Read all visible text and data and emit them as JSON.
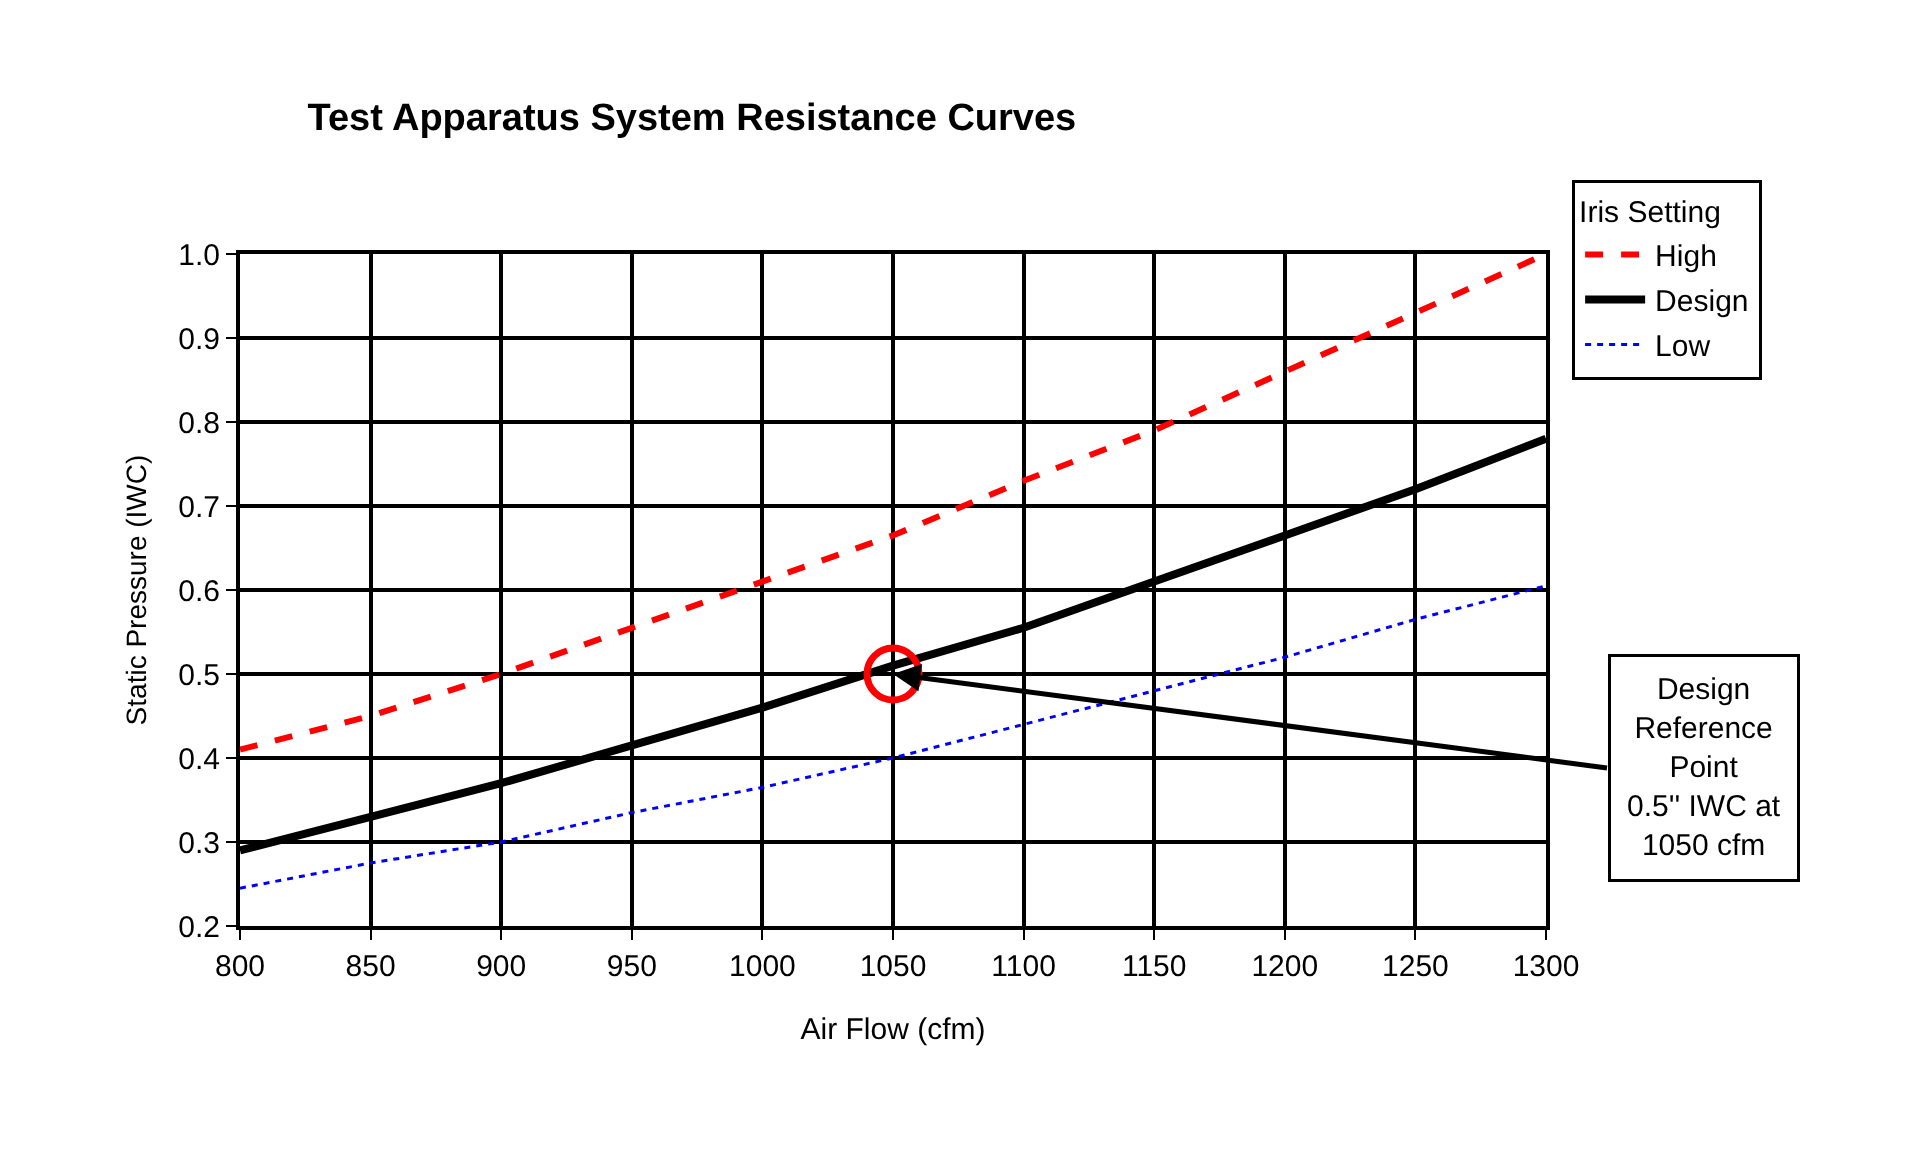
{
  "chart_data": {
    "type": "line",
    "title": "Test Apparatus System Resistance Curves",
    "xlabel": "Air Flow (cfm)",
    "ylabel": "Static Pressure (IWC)",
    "legend_title": "Iris Setting",
    "x": [
      800,
      850,
      900,
      950,
      1000,
      1050,
      1100,
      1150,
      1200,
      1250,
      1300
    ],
    "series": [
      {
        "name": "High",
        "color": "#ff0000",
        "line_style": "dashed",
        "values": [
          0.41,
          0.45,
          0.5,
          0.555,
          0.61,
          0.665,
          0.73,
          0.79,
          0.86,
          0.93,
          1.0
        ]
      },
      {
        "name": "Design",
        "color": "#000000",
        "line_style": "solid",
        "values": [
          0.29,
          0.33,
          0.37,
          0.415,
          0.46,
          0.51,
          0.555,
          0.61,
          0.665,
          0.72,
          0.78
        ]
      },
      {
        "name": "Low",
        "color": "#0000ff",
        "line_style": "dotted",
        "values": [
          0.245,
          0.275,
          0.3,
          0.335,
          0.365,
          0.4,
          0.44,
          0.48,
          0.52,
          0.565,
          0.605
        ]
      }
    ],
    "xlim": [
      800,
      1300
    ],
    "xticks": [
      800,
      850,
      900,
      950,
      1000,
      1050,
      1100,
      1150,
      1200,
      1250,
      1300
    ],
    "ylim": [
      0.2,
      1.0
    ],
    "yticks": [
      {
        "value": 0.2,
        "label": "0.2"
      },
      {
        "value": 0.3,
        "label": "0.3"
      },
      {
        "value": 0.4,
        "label": "0.4"
      },
      {
        "value": 0.5,
        "label": "0.5"
      },
      {
        "value": 0.6,
        "label": "0.6"
      },
      {
        "value": 0.7,
        "label": "0.7"
      },
      {
        "value": 0.8,
        "label": "0.8"
      },
      {
        "value": 0.9,
        "label": "0.9"
      },
      {
        "value": 1.0,
        "label": "1.0"
      }
    ],
    "annotations": [
      {
        "text": "Design\nReference\nPoint\n0.5'' IWC at\n1050 cfm",
        "x": 1050,
        "y": 0.5
      }
    ],
    "grid": true,
    "legend": "top right",
    "marker": "none"
  }
}
